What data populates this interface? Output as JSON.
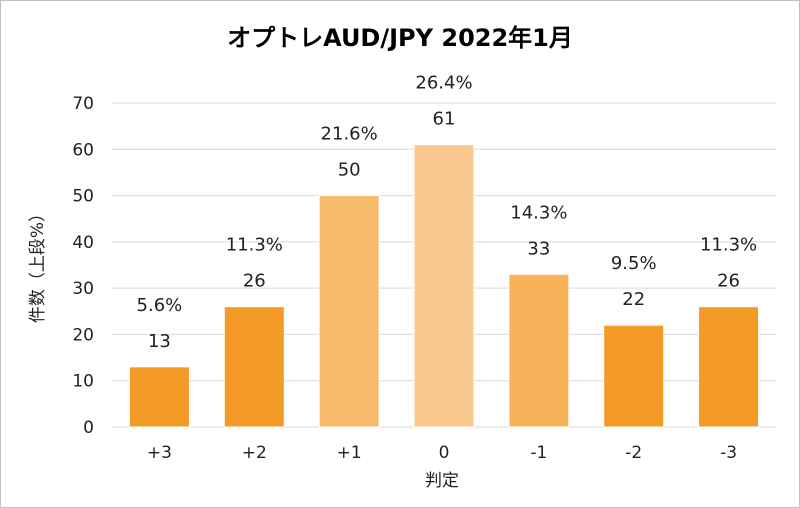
{
  "chart_data": {
    "type": "bar",
    "title": "オプトレAUD/JPY 2022年1月",
    "xlabel": "判定",
    "ylabel": "件数（上段%）",
    "ylim": [
      0,
      70
    ],
    "yticks": [
      0,
      10,
      20,
      30,
      40,
      50,
      60,
      70
    ],
    "categories": [
      "+3",
      "+2",
      "+1",
      "0",
      "-1",
      "-2",
      "-3"
    ],
    "values": [
      13,
      26,
      50,
      61,
      33,
      22,
      26
    ],
    "percent_labels": [
      "5.6%",
      "11.3%",
      "21.6%",
      "26.4%",
      "14.3%",
      "9.5%",
      "11.3%"
    ],
    "colors": [
      "#f39a27",
      "#f39a27",
      "#f8bb6c",
      "#fbc98f",
      "#f8b25a",
      "#f39a27",
      "#f39a27"
    ],
    "grid": true,
    "legend": "none"
  }
}
